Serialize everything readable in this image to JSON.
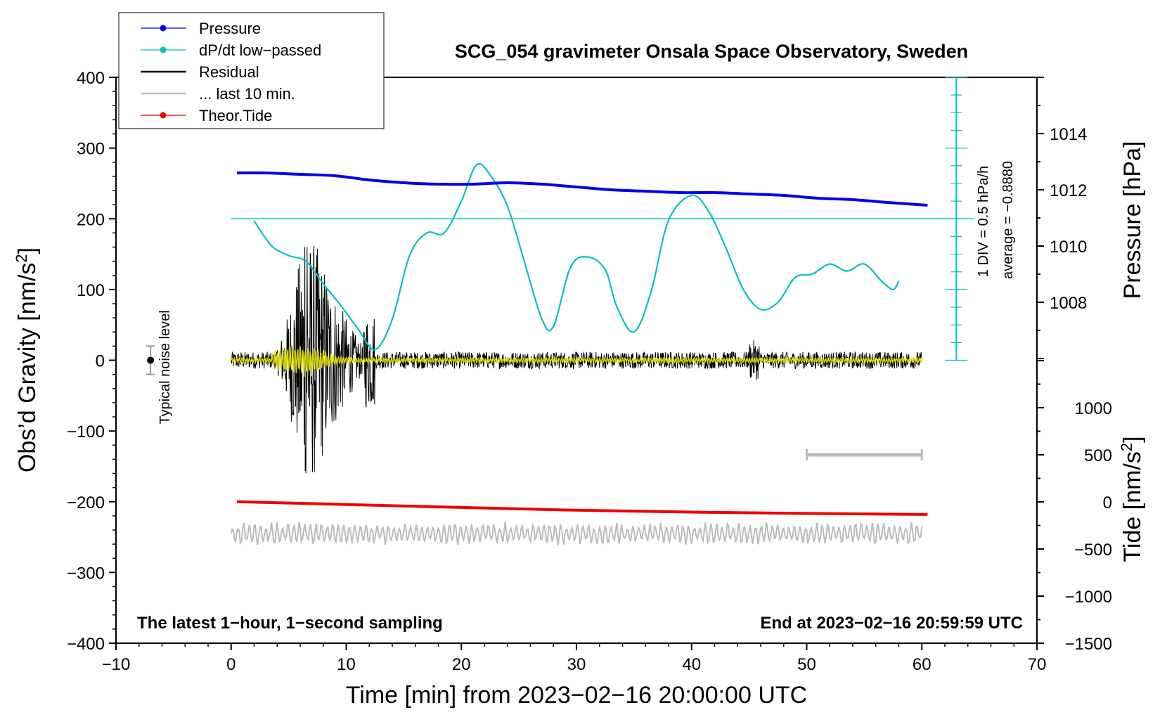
{
  "chart_data": {
    "type": "line",
    "title": "SCG_054 gravimeter Onsala Space Observatory, Sweden",
    "xlabel": "Time [min] from 2023−02−16 20:00:00 UTC",
    "ylabel_left_main": "Obs’d Gravity [nm/s",
    "ylabel_left_sup": "2",
    "ylabel_left_end": "]",
    "ylabel_right_pressure": "Pressure [hPa]",
    "ylabel_right_tide_main": "Tide [nm/s",
    "ylabel_right_tide_sup": "2",
    "ylabel_right_tide_end": "]",
    "xlim": [
      -10,
      70
    ],
    "ylim_gravity": [
      -400,
      400
    ],
    "ylim_pressure": [
      1006,
      1016
    ],
    "ylim_tide": [
      -1500,
      1500
    ],
    "x_ticks": [
      "−10",
      "0",
      "10",
      "20",
      "30",
      "40",
      "50",
      "60",
      "70"
    ],
    "x_tick_values": [
      -10,
      0,
      10,
      20,
      30,
      40,
      50,
      60,
      70
    ],
    "gravity_ticks": [
      "400",
      "300",
      "200",
      "100",
      "0",
      "−100",
      "−200",
      "−300",
      "−400"
    ],
    "gravity_tick_values": [
      400,
      300,
      200,
      100,
      0,
      -100,
      -200,
      -300,
      -400
    ],
    "pressure_ticks": [
      "1014",
      "1012",
      "1010",
      "1008"
    ],
    "pressure_tick_values": [
      1014,
      1012,
      1010,
      1008
    ],
    "tide_ticks": [
      "1000",
      "500",
      "0",
      "−500",
      "−1000",
      "−1500"
    ],
    "tide_tick_values": [
      1000,
      500,
      0,
      -500,
      -1000,
      -1500
    ],
    "legend": {
      "placement": "top-left",
      "entries": [
        {
          "label": "Pressure",
          "color": "#0000ee",
          "marker": true
        },
        {
          "label": "dP/dt low−passed",
          "color": "#00c0c0",
          "marker": true
        },
        {
          "label": "Residual",
          "color": "#000000",
          "marker": false
        },
        {
          "label": "... last 10 min.",
          "color": "#bbbbbb",
          "marker": false
        },
        {
          "label": "Theor.Tide",
          "color": "#ee0000",
          "marker": true
        }
      ]
    },
    "annotations": {
      "bottom_left": "The latest 1−hour, 1−second sampling",
      "bottom_right": "End at 2023−02−16 20:59:59 UTC",
      "noise_label": "Typical noise level",
      "div_label": "1 DIV = 0.5 hPa/h",
      "average_label": "average = −0.8880"
    },
    "series": [
      {
        "name": "Pressure",
        "unit": "hPa",
        "color": "#0000ee",
        "x": [
          0.5,
          3,
          6,
          9,
          12,
          15,
          18,
          21,
          24,
          27,
          30,
          33,
          36,
          39,
          42,
          45,
          48,
          51,
          54,
          57,
          60.5
        ],
        "values": [
          1012.6,
          1012.6,
          1012.55,
          1012.5,
          1012.35,
          1012.25,
          1012.2,
          1012.2,
          1012.25,
          1012.2,
          1012.1,
          1012.0,
          1011.95,
          1011.9,
          1011.9,
          1011.85,
          1011.8,
          1011.7,
          1011.65,
          1011.55,
          1011.45
        ]
      },
      {
        "name": "dP/dt low−passed",
        "unit": "nm/s2 plot axis",
        "color": "#00c0c0",
        "x": [
          2,
          3.5,
          5,
          6.5,
          8,
          9.5,
          11,
          12.5,
          14,
          15.5,
          17,
          18.5,
          20,
          21.3,
          22.5,
          24,
          25.5,
          27,
          28,
          29.5,
          31,
          32.5,
          33.5,
          35,
          36.5,
          38,
          40,
          41.5,
          43,
          44.5,
          46,
          47.5,
          49,
          50.5,
          52,
          53.5,
          55,
          56.5,
          57.5,
          58
        ],
        "values": [
          197,
          162,
          148,
          140,
          108,
          78,
          45,
          15,
          58,
          148,
          180,
          180,
          225,
          276,
          262,
          218,
          138,
          58,
          48,
          132,
          146,
          128,
          76,
          40,
          98,
          198,
          233,
          210,
          158,
          100,
          72,
          82,
          117,
          122,
          136,
          126,
          136,
          112,
          100,
          112
        ]
      },
      {
        "name": "Residual",
        "unit": "nm/s2",
        "color": "#000000",
        "x_range": [
          0,
          60
        ],
        "peaks": [
          {
            "x": 6.5,
            "max": 160,
            "min": -165
          },
          {
            "x": 8.5,
            "max": 100,
            "min": -100
          },
          {
            "x": 12.0,
            "max": 80,
            "min": -80
          },
          {
            "x": 45.5,
            "max": 30,
            "min": -20
          }
        ],
        "typical_amplitude": 12
      },
      {
        "name": "Residual low−passed (yellow)",
        "unit": "nm/s2",
        "color": "#d8d800",
        "x_range": [
          0,
          60
        ],
        "typical_amplitude": 4
      },
      {
        "name": "... last 10 min.",
        "unit": "nm/s2 plot axis",
        "color": "#bbbbbb",
        "x_range": [
          0,
          60
        ],
        "center": -245,
        "typical_amplitude": 12
      },
      {
        "name": "Theor.Tide",
        "unit": "nm/s2",
        "color": "#ee0000",
        "x": [
          0.5,
          10,
          20,
          30,
          40,
          50,
          60.5
        ],
        "values": [
          35,
          22,
          8,
          -5,
          -14,
          -20,
          -25
        ]
      }
    ],
    "noise_bar": {
      "x": -7,
      "center": 0,
      "half_range": 20
    },
    "ten_min_bar": {
      "x_start": 50,
      "x_end": 60,
      "tide_value": 500
    },
    "dpdt_scale": {
      "x": 63,
      "y_top": 400,
      "y_bottom": 0,
      "reference_value": 200,
      "divisions": 16
    }
  }
}
